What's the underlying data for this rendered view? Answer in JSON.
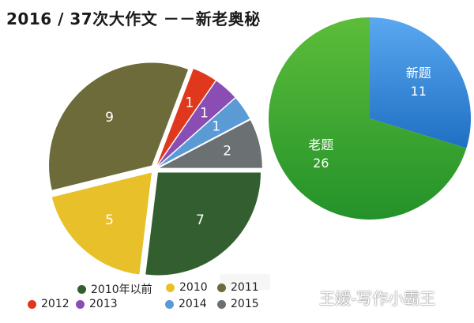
{
  "title": "2016 / 37次大作文 －－新老奥秘",
  "watermark": "王嫒-写作小霸王",
  "chart_data": [
    {
      "type": "pie",
      "title": "",
      "slices": [
        {
          "label": "2010年以前",
          "value": 7,
          "color": "#335f30"
        },
        {
          "label": "2010",
          "value": 5,
          "color": "#e8c12a"
        },
        {
          "label": "2011",
          "value": 9,
          "color": "#6e6b3a"
        },
        {
          "label": "2012",
          "value": 1,
          "color": "#e0381c"
        },
        {
          "label": "2013",
          "value": 1,
          "color": "#8a4db3"
        },
        {
          "label": "2014",
          "value": 1,
          "color": "#5b9bd5"
        },
        {
          "label": "2015",
          "value": 2,
          "color": "#6b7072"
        }
      ],
      "legend": [
        [
          "2010年以前",
          "2010",
          "2011"
        ],
        [
          "2012",
          "2013",
          "2014",
          "2015"
        ]
      ]
    },
    {
      "type": "pie",
      "title": "",
      "slices": [
        {
          "label": "新题",
          "value": 11,
          "color": "#2f7fd6"
        },
        {
          "label": "老题",
          "value": 26,
          "color": "#2f9e32"
        }
      ]
    }
  ]
}
